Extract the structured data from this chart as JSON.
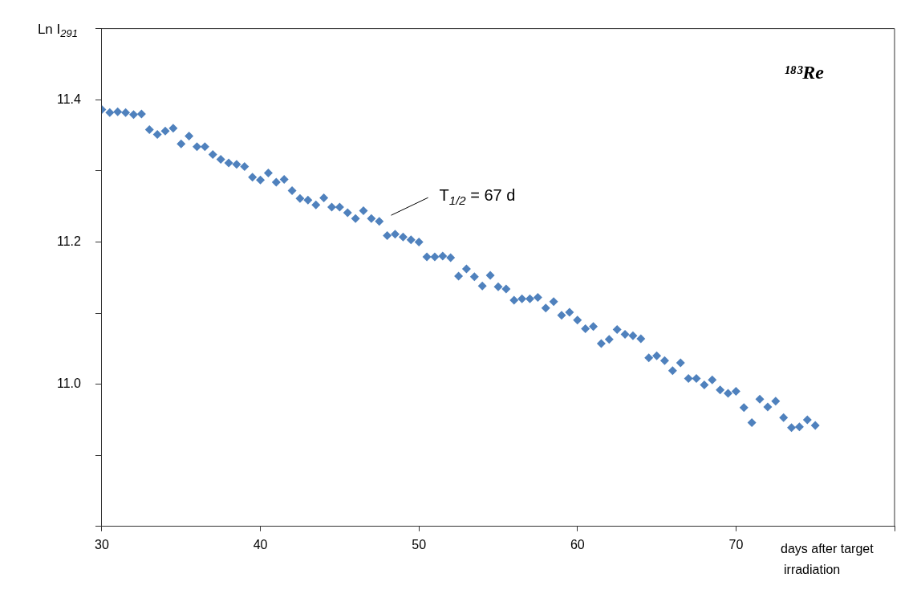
{
  "chart_data": {
    "type": "scatter",
    "ylabel": "Ln I$_{291}$",
    "xlabel": "days after target irradiation",
    "annotations": [
      "¹⁸³Re",
      "T$_{1/2}$ = 67 d"
    ],
    "x": [
      30,
      30.5,
      31,
      31.5,
      32,
      32.5,
      33,
      33.5,
      34,
      34.5,
      35,
      35.5,
      36,
      36.5,
      37,
      37.5,
      38,
      38.5,
      39,
      39.5,
      40,
      40.5,
      41,
      41.5,
      42,
      42.5,
      43,
      43.5,
      44,
      44.5,
      45,
      45.5,
      46,
      46.5,
      47,
      47.5,
      48,
      48.5,
      49,
      49.5,
      50,
      50.5,
      51,
      51.5,
      52,
      52.5,
      53,
      53.5,
      54,
      54.5,
      55,
      55.5,
      56,
      56.5,
      57,
      57.5,
      58,
      58.5,
      59,
      59.5,
      60,
      60.5,
      61,
      61.5,
      62,
      62.5,
      63,
      63.5,
      64,
      64.5,
      65,
      65.5,
      66,
      66.5,
      67,
      67.5,
      68,
      68.5,
      69,
      69.5,
      70,
      70.5,
      71,
      71.5,
      72,
      72.5,
      73,
      73.5,
      74,
      74.5,
      75
    ],
    "series": [
      {
        "color": "#4f81bd",
        "values": [
          11.386,
          11.382,
          11.383,
          11.382,
          11.379,
          11.38,
          11.358,
          11.351,
          11.356,
          11.36,
          11.338,
          11.349,
          11.334,
          11.334,
          11.323,
          11.316,
          11.311,
          11.309,
          11.306,
          11.291,
          11.287,
          11.297,
          11.284,
          11.288,
          11.272,
          11.261,
          11.259,
          11.252,
          11.262,
          11.249,
          11.249,
          11.241,
          11.233,
          11.244,
          11.233,
          11.229,
          11.209,
          11.211,
          11.207,
          11.203,
          11.2,
          11.179,
          11.179,
          11.18,
          11.178,
          11.152,
          11.162,
          11.151,
          11.138,
          11.153,
          11.137,
          11.134,
          11.118,
          11.12,
          11.12,
          11.122,
          11.107,
          11.116,
          11.097,
          11.101,
          11.09,
          11.078,
          11.081,
          11.057,
          11.063,
          11.077,
          11.07,
          11.068,
          11.064,
          11.037,
          11.04,
          11.033,
          11.019,
          11.03,
          11.008,
          11.008,
          10.999,
          11.006,
          10.992,
          10.987,
          10.99,
          10.967,
          10.946,
          10.979,
          10.968,
          10.976,
          10.953,
          10.939,
          10.94,
          10.95,
          10.942
        ]
      }
    ],
    "marker": "diamond",
    "grid": false,
    "legend": false,
    "xlim": [
      30,
      80
    ],
    "xticks": [
      30,
      40,
      50,
      60,
      70,
      {
        "value": 80,
        "label": null
      }
    ],
    "ylim": [
      10.8,
      11.5
    ],
    "yticks": [
      {
        "value": 10.8,
        "label": null
      },
      {
        "value": 10.9,
        "label": null
      },
      {
        "value": 11.0,
        "label": "11.0"
      },
      {
        "value": 11.1,
        "label": null
      },
      {
        "value": 11.2,
        "label": "11.2"
      },
      {
        "value": 11.3,
        "label": null
      },
      {
        "value": 11.4,
        "label": "11.4"
      },
      {
        "value": 11.5,
        "label": null
      }
    ]
  }
}
